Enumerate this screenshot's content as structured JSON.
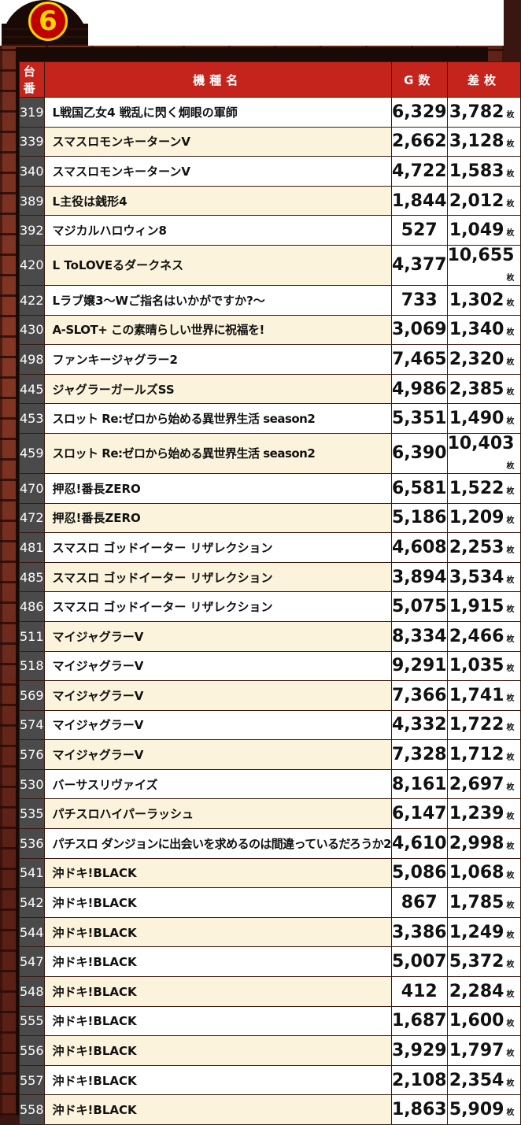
{
  "badge": "6",
  "headers": {
    "no": "台番",
    "name": "機種名",
    "g": "G数",
    "diff": "差枚"
  },
  "unit": "枚",
  "rows": [
    {
      "no": "319",
      "name": "L戦国乙女4 戦乱に閃く炯眼の軍師",
      "g": "6,329",
      "diff": "3,782"
    },
    {
      "no": "339",
      "name": "スマスロモンキーターンV",
      "g": "2,662",
      "diff": "3,128"
    },
    {
      "no": "340",
      "name": "スマスロモンキーターンV",
      "g": "4,722",
      "diff": "1,583"
    },
    {
      "no": "389",
      "name": "L主役は銭形4",
      "g": "1,844",
      "diff": "2,012"
    },
    {
      "no": "392",
      "name": "マジカルハロウィン8",
      "g": "527",
      "diff": "1,049"
    },
    {
      "no": "420",
      "name": "L ToLOVEるダークネス",
      "g": "4,377",
      "diff": "10,655"
    },
    {
      "no": "422",
      "name": "Lラブ嬢3〜Wご指名はいかがですか?〜",
      "g": "733",
      "diff": "1,302"
    },
    {
      "no": "430",
      "name": "A-SLOT+ この素晴らしい世界に祝福を!",
      "g": "3,069",
      "diff": "1,340"
    },
    {
      "no": "498",
      "name": "ファンキージャグラー2",
      "g": "7,465",
      "diff": "2,320"
    },
    {
      "no": "445",
      "name": "ジャグラーガールズSS",
      "g": "4,986",
      "diff": "2,385"
    },
    {
      "no": "453",
      "name": "スロット Re:ゼロから始める異世界生活 season2",
      "g": "5,351",
      "diff": "1,490"
    },
    {
      "no": "459",
      "name": "スロット Re:ゼロから始める異世界生活 season2",
      "g": "6,390",
      "diff": "10,403"
    },
    {
      "no": "470",
      "name": "押忍!番長ZERO",
      "g": "6,581",
      "diff": "1,522"
    },
    {
      "no": "472",
      "name": "押忍!番長ZERO",
      "g": "5,186",
      "diff": "1,209"
    },
    {
      "no": "481",
      "name": "スマスロ ゴッドイーター リザレクション",
      "g": "4,608",
      "diff": "2,253"
    },
    {
      "no": "485",
      "name": "スマスロ ゴッドイーター リザレクション",
      "g": "3,894",
      "diff": "3,534"
    },
    {
      "no": "486",
      "name": "スマスロ ゴッドイーター リザレクション",
      "g": "5,075",
      "diff": "1,915"
    },
    {
      "no": "511",
      "name": "マイジャグラーV",
      "g": "8,334",
      "diff": "2,466"
    },
    {
      "no": "518",
      "name": "マイジャグラーV",
      "g": "9,291",
      "diff": "1,035"
    },
    {
      "no": "569",
      "name": "マイジャグラーV",
      "g": "7,366",
      "diff": "1,741"
    },
    {
      "no": "574",
      "name": "マイジャグラーV",
      "g": "4,332",
      "diff": "1,722"
    },
    {
      "no": "576",
      "name": "マイジャグラーV",
      "g": "7,328",
      "diff": "1,712"
    },
    {
      "no": "530",
      "name": "バーサスリヴァイズ",
      "g": "8,161",
      "diff": "2,697"
    },
    {
      "no": "535",
      "name": "パチスロハイパーラッシュ",
      "g": "6,147",
      "diff": "1,239"
    },
    {
      "no": "536",
      "name": "パチスロ ダンジョンに出会いを求めるのは間違っているだろうか2",
      "g": "4,610",
      "diff": "2,998"
    },
    {
      "no": "541",
      "name": "沖ドキ!BLACK",
      "g": "5,086",
      "diff": "1,068"
    },
    {
      "no": "542",
      "name": "沖ドキ!BLACK",
      "g": "867",
      "diff": "1,785"
    },
    {
      "no": "544",
      "name": "沖ドキ!BLACK",
      "g": "3,386",
      "diff": "1,249"
    },
    {
      "no": "547",
      "name": "沖ドキ!BLACK",
      "g": "5,007",
      "diff": "5,372"
    },
    {
      "no": "548",
      "name": "沖ドキ!BLACK",
      "g": "412",
      "diff": "2,284"
    },
    {
      "no": "555",
      "name": "沖ドキ!BLACK",
      "g": "1,687",
      "diff": "1,600"
    },
    {
      "no": "556",
      "name": "沖ドキ!BLACK",
      "g": "3,929",
      "diff": "1,797"
    },
    {
      "no": "557",
      "name": "沖ドキ!BLACK",
      "g": "2,108",
      "diff": "2,354"
    },
    {
      "no": "558",
      "name": "沖ドキ!BLACK",
      "g": "1,863",
      "diff": "5,909"
    }
  ]
}
